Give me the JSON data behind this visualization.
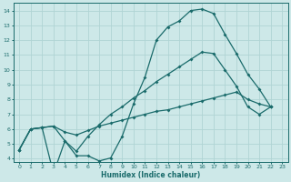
{
  "xlabel": "Humidex (Indice chaleur)",
  "bg_color": "#cde8e8",
  "grid_color": "#b0d4d4",
  "line_color": "#1a6b6b",
  "xlim": [
    -0.5,
    23.5
  ],
  "ylim": [
    3.8,
    14.5
  ],
  "xticks": [
    0,
    1,
    2,
    3,
    4,
    5,
    6,
    7,
    8,
    9,
    10,
    11,
    12,
    13,
    14,
    15,
    16,
    17,
    18,
    19,
    20,
    21,
    22,
    23
  ],
  "yticks": [
    4,
    5,
    6,
    7,
    8,
    9,
    10,
    11,
    12,
    13,
    14
  ],
  "line1_x": [
    0,
    1,
    2,
    3,
    4,
    5,
    6,
    7,
    8,
    9,
    10,
    11,
    12,
    13,
    14,
    15,
    16,
    17,
    18,
    19,
    20,
    21,
    22
  ],
  "line1_y": [
    4.6,
    6.0,
    6.1,
    3.0,
    5.2,
    4.2,
    4.2,
    3.85,
    4.05,
    5.5,
    7.7,
    9.5,
    12.0,
    12.9,
    13.3,
    14.0,
    14.1,
    13.8,
    12.4,
    11.1,
    9.7,
    8.7,
    7.5
  ],
  "line2_x": [
    0,
    1,
    2,
    3,
    4,
    5,
    6,
    7,
    8,
    9,
    10,
    11,
    12,
    13,
    14,
    15,
    16,
    17,
    18,
    19,
    20,
    21,
    22
  ],
  "line2_y": [
    4.6,
    6.0,
    6.1,
    6.2,
    5.2,
    4.5,
    5.5,
    6.3,
    7.0,
    7.5,
    8.1,
    8.6,
    9.2,
    9.7,
    10.2,
    10.7,
    11.2,
    11.1,
    10.0,
    8.9,
    7.5,
    7.0,
    7.5
  ],
  "line3_x": [
    0,
    1,
    2,
    3,
    4,
    5,
    6,
    7,
    8,
    9,
    10,
    11,
    12,
    13,
    14,
    15,
    16,
    17,
    18,
    19,
    20,
    21,
    22
  ],
  "line3_y": [
    4.6,
    6.0,
    6.1,
    6.2,
    5.8,
    5.6,
    5.9,
    6.2,
    6.4,
    6.6,
    6.8,
    7.0,
    7.2,
    7.3,
    7.5,
    7.7,
    7.9,
    8.1,
    8.3,
    8.5,
    8.0,
    7.7,
    7.5
  ],
  "marker": "D",
  "markersize": 2.0,
  "linewidth": 0.9
}
